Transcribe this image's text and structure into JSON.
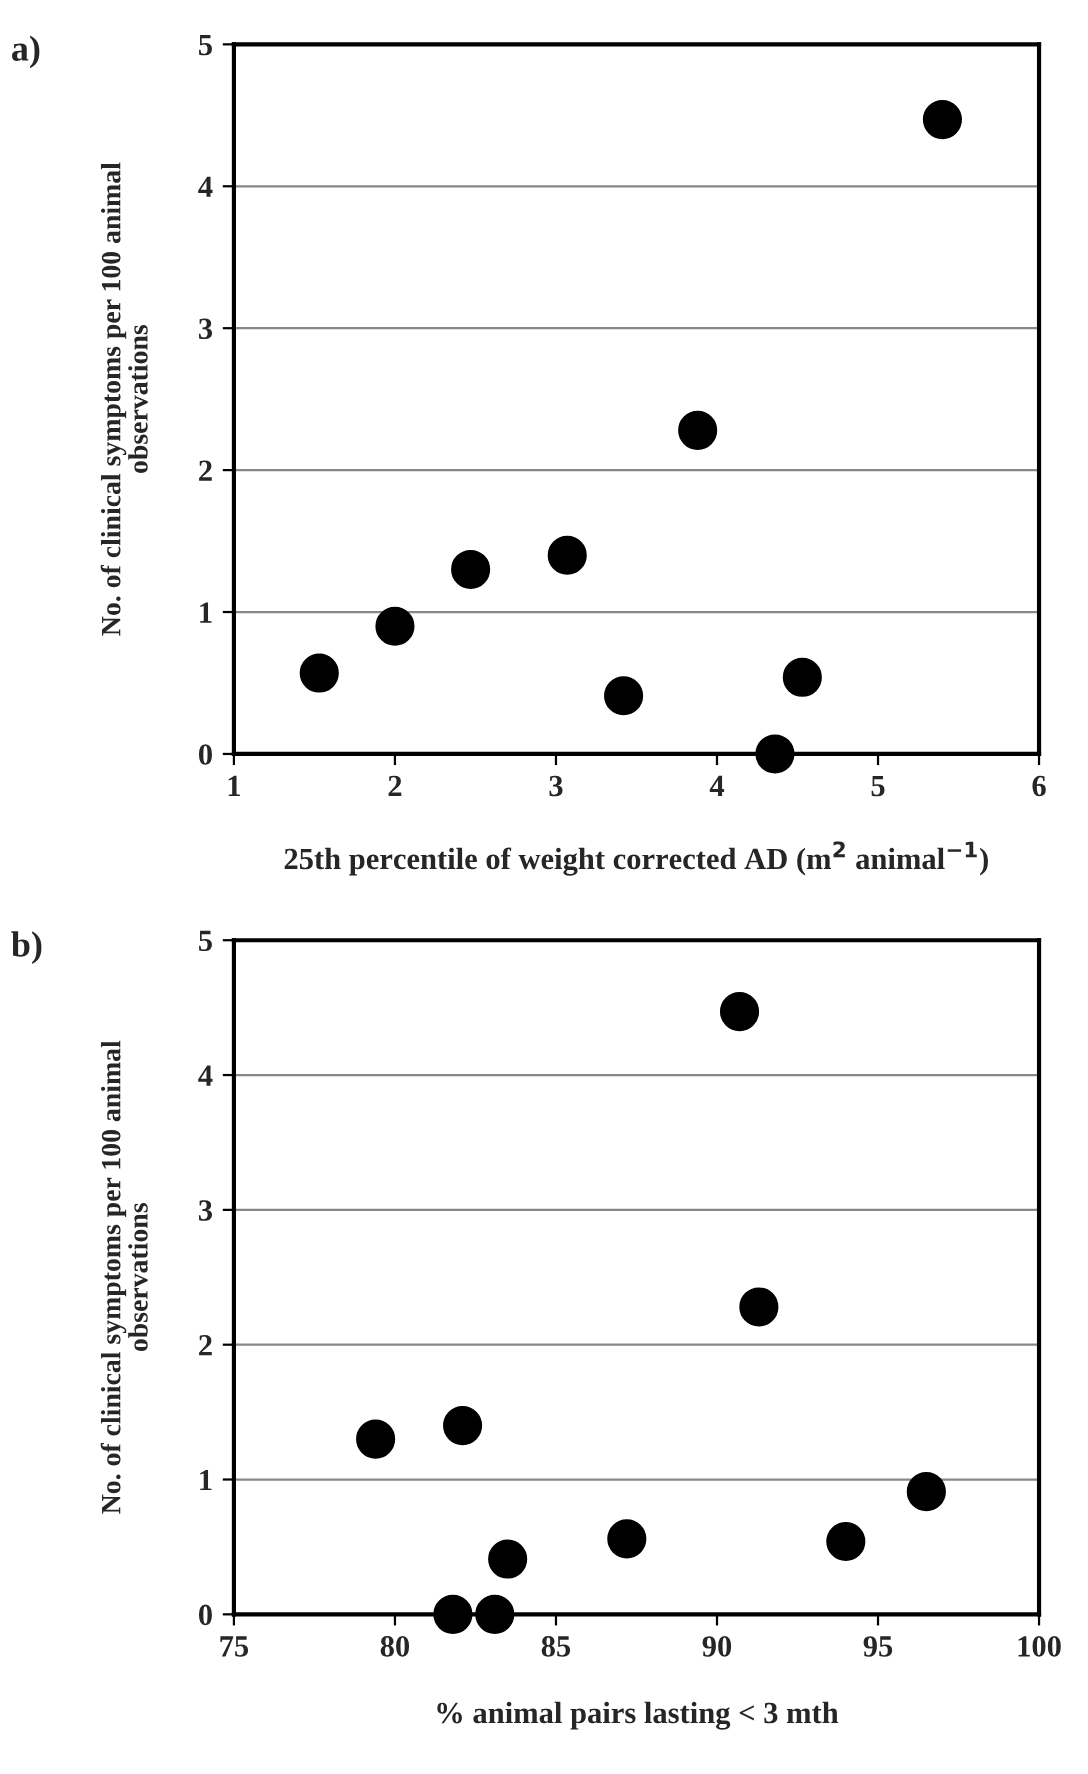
{
  "chart_data": [
    {
      "type": "scatter",
      "title": "a)",
      "xlabel": "25th percentile of weight corrected AD (m$^{2}$ animal$^{−1}$)",
      "ylabel": "No. of clinical symptoms per 100 animal\nobservations",
      "series": [
        {
          "color": "#000000",
          "x": [
            1.53,
            2.0,
            2.47,
            3.07,
            3.42,
            3.88,
            4.36,
            4.53,
            5.4
          ],
          "values": [
            0.57,
            0.9,
            1.3,
            1.4,
            0.41,
            2.28,
            0.0,
            0.54,
            4.47
          ]
        }
      ],
      "xlim": [
        1,
        6
      ],
      "xticks": [
        1,
        2,
        3,
        4,
        5,
        6
      ],
      "ylim": [
        0,
        5
      ],
      "yticks": [
        0,
        1,
        2,
        3,
        4,
        5
      ],
      "grid": "y",
      "marker": "circle"
    },
    {
      "type": "scatter",
      "title": "b)",
      "xlabel": "% animal pairs lasting < 3 mth",
      "ylabel": "No. of clinical symptoms per 100 animal\nobservations",
      "series": [
        {
          "color": "#000000",
          "x": [
            79.4,
            82.1,
            81.8,
            83.1,
            83.5,
            87.2,
            90.7,
            91.3,
            94.0,
            96.5
          ],
          "values": [
            1.3,
            1.4,
            0.0,
            0.0,
            0.41,
            0.56,
            4.47,
            2.28,
            0.54,
            0.91
          ]
        }
      ],
      "xlim": [
        75,
        100
      ],
      "xticks": [
        75,
        80,
        85,
        90,
        95,
        100
      ],
      "ylim": [
        0,
        5
      ],
      "yticks": [
        0,
        1,
        2,
        3,
        4,
        5
      ],
      "grid": "y",
      "marker": "circle"
    }
  ]
}
